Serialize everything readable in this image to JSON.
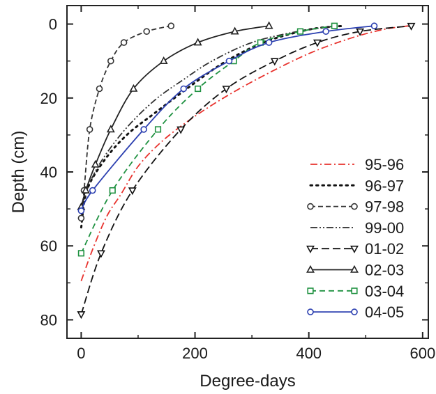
{
  "chart_data": {
    "type": "line",
    "title": "",
    "xlabel": "Degree-days",
    "ylabel": "Depth (cm)",
    "xlim": [
      -25,
      610
    ],
    "ylim": [
      85,
      -5
    ],
    "y_inverted": true,
    "x_ticks": [
      0,
      200,
      400,
      600
    ],
    "y_ticks": [
      0,
      20,
      40,
      60,
      80
    ],
    "x_tick_labels": [
      "0",
      "200",
      "400",
      "600"
    ],
    "y_tick_labels": [
      "0",
      "20",
      "40",
      "60",
      "80"
    ],
    "grid": false,
    "legend_position": "bottom-right",
    "series": [
      {
        "name": "95-96",
        "color": "#e8322d",
        "dash": "10,4,2,4",
        "marker": "none",
        "points": [
          [
            0,
            69.5
          ],
          [
            20,
            61
          ],
          [
            45,
            52
          ],
          [
            70,
            46
          ],
          [
            100,
            38.5
          ],
          [
            140,
            32
          ],
          [
            190,
            26
          ],
          [
            250,
            20
          ],
          [
            320,
            14
          ],
          [
            400,
            8
          ],
          [
            470,
            4
          ],
          [
            530,
            1.5
          ],
          [
            575,
            0.5
          ]
        ]
      },
      {
        "name": "96-97",
        "color": "#111111",
        "dash": "2.5,6",
        "marker": "none",
        "points": [
          [
            0,
            55
          ],
          [
            10,
            45
          ],
          [
            40,
            37
          ],
          [
            80,
            30
          ],
          [
            130,
            24
          ],
          [
            190,
            17
          ],
          [
            250,
            10.5
          ],
          [
            320,
            5
          ],
          [
            400,
            1.5
          ],
          [
            460,
            0.5
          ]
        ]
      },
      {
        "name": "97-98",
        "color": "#333333",
        "dash": "7,4",
        "marker": "circle",
        "points": [
          [
            0,
            52.5
          ],
          [
            5,
            45
          ],
          [
            15,
            28.5
          ],
          [
            32,
            17.5
          ],
          [
            52,
            10
          ],
          [
            75,
            5
          ],
          [
            115,
            2
          ],
          [
            158,
            0.5
          ]
        ]
      },
      {
        "name": "99-00",
        "color": "#333333",
        "dash": "10,3,2,3,2,3",
        "marker": "none",
        "points": [
          [
            0,
            50
          ],
          [
            15,
            43
          ],
          [
            40,
            36
          ],
          [
            80,
            28
          ],
          [
            130,
            20.5
          ],
          [
            180,
            15
          ],
          [
            230,
            10
          ],
          [
            300,
            5
          ],
          [
            380,
            2
          ],
          [
            450,
            0.5
          ]
        ]
      },
      {
        "name": "01-02",
        "color": "#111111",
        "dash": "11,5",
        "marker": "triangle-down",
        "points": [
          [
            0,
            78.5
          ],
          [
            35,
            62
          ],
          [
            90,
            45
          ],
          [
            175,
            28.5
          ],
          [
            255,
            17.5
          ],
          [
            340,
            10
          ],
          [
            415,
            5
          ],
          [
            490,
            2
          ],
          [
            580,
            0.5
          ]
        ]
      },
      {
        "name": "02-03",
        "color": "#222222",
        "dash": "none",
        "marker": "triangle-up",
        "points": [
          [
            0,
            49.5
          ],
          [
            8,
            45
          ],
          [
            25,
            38
          ],
          [
            52,
            28.5
          ],
          [
            92,
            17.5
          ],
          [
            145,
            10
          ],
          [
            205,
            5
          ],
          [
            270,
            2
          ],
          [
            330,
            0.5
          ]
        ]
      },
      {
        "name": "03-04",
        "color": "#1e9140",
        "dash": "8,5",
        "marker": "square",
        "points": [
          [
            0,
            62
          ],
          [
            55,
            45
          ],
          [
            135,
            28.5
          ],
          [
            205,
            17.5
          ],
          [
            268,
            10
          ],
          [
            315,
            5
          ],
          [
            385,
            2
          ],
          [
            445,
            0.5
          ]
        ]
      },
      {
        "name": "04-05",
        "color": "#2b3fb0",
        "dash": "none",
        "marker": "circle",
        "points": [
          [
            0,
            50.5
          ],
          [
            20,
            45
          ],
          [
            110,
            28.5
          ],
          [
            180,
            17.5
          ],
          [
            260,
            10
          ],
          [
            330,
            5
          ],
          [
            430,
            2
          ],
          [
            515,
            0.5
          ]
        ]
      }
    ]
  }
}
